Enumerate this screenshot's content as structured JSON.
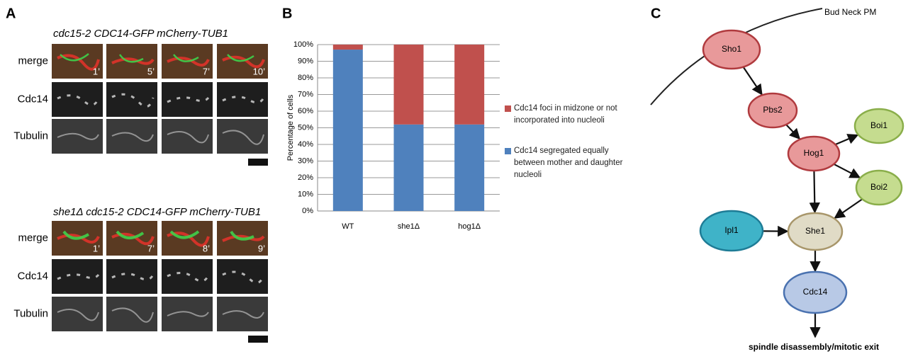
{
  "panel_a": {
    "label": "A",
    "blocks": [
      {
        "title": "cdc15-2 CDC14-GFP mCherry-TUB1",
        "rows": [
          "merge",
          "Cdc14",
          "Tubulin"
        ],
        "times": [
          "1’",
          "5’",
          "7’",
          "10’"
        ]
      },
      {
        "title": "she1Δ cdc15-2 CDC14-GFP mCherry-TUB1",
        "rows": [
          "merge",
          "Cdc14",
          "Tubulin"
        ],
        "times": [
          "1’",
          "7’",
          "8’",
          "9’"
        ]
      }
    ]
  },
  "chart_data": {
    "type": "bar",
    "stacked": true,
    "panel_label": "B",
    "ylabel": "Percentage of cells",
    "categories": [
      "WT",
      "she1Δ",
      "hog1Δ"
    ],
    "series": [
      {
        "name": "Cdc14 segregated equally between mother and daughter nucleoli",
        "color": "#4f81bd",
        "values": [
          97,
          52,
          52
        ]
      },
      {
        "name": "Cdc14 foci in midzone or not incorporated into nucleoli",
        "color": "#c0504d",
        "values": [
          3,
          48,
          48
        ]
      }
    ],
    "ylim": [
      0,
      100
    ],
    "yticks": [
      {
        "value": 0,
        "label": "0%"
      },
      {
        "value": 10,
        "label": "10%"
      },
      {
        "value": 20,
        "label": "20%"
      },
      {
        "value": 30,
        "label": "30%"
      },
      {
        "value": 40,
        "label": "40%"
      },
      {
        "value": 50,
        "label": "50%"
      },
      {
        "value": 60,
        "label": "60%"
      },
      {
        "value": 70,
        "label": "70%"
      },
      {
        "value": 80,
        "label": "80%"
      },
      {
        "value": 90,
        "label": "90%"
      },
      {
        "value": 100,
        "label": "100%"
      }
    ],
    "grid": true
  },
  "panel_c": {
    "label": "C",
    "membrane_label": "Bud Neck PM",
    "nodes": [
      {
        "label": "Sho1"
      },
      {
        "label": "Pbs2"
      },
      {
        "label": "Boi1"
      },
      {
        "label": "Hog1"
      },
      {
        "label": "Boi2"
      },
      {
        "label": "Ipl1"
      },
      {
        "label": "She1"
      },
      {
        "label": "Cdc14"
      }
    ],
    "outcome": "spindle disassembly/mitotic exit"
  }
}
